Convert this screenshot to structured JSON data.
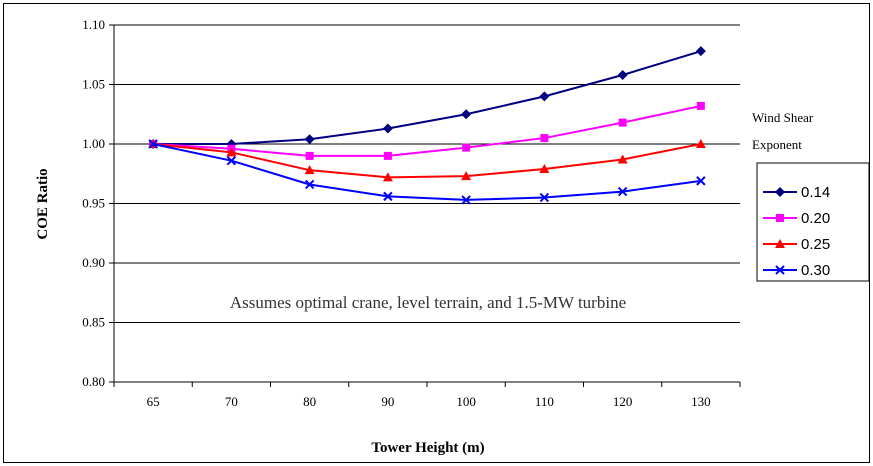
{
  "chart_data": {
    "type": "line",
    "xlabel": "Tower Height (m)",
    "ylabel": "COE Ratio",
    "categories": [
      "65",
      "70",
      "80",
      "90",
      "100",
      "110",
      "120",
      "130"
    ],
    "ylim": [
      0.8,
      1.1
    ],
    "yticks": [
      "0.80",
      "0.85",
      "0.90",
      "0.95",
      "1.00",
      "1.05",
      "1.10"
    ],
    "grid": true,
    "annotation": "Assumes optimal crane, level terrain, and 1.5-MW turbine",
    "legend": {
      "title_line1": "Wind Shear",
      "title_line2": "Exponent",
      "placement": "right"
    },
    "series": [
      {
        "name": "0.14",
        "color": "#000080",
        "marker": "diamond",
        "values": [
          1.0,
          1.0,
          1.004,
          1.013,
          1.025,
          1.04,
          1.058,
          1.078
        ]
      },
      {
        "name": "0.20",
        "color": "#ff00ff",
        "marker": "square",
        "values": [
          1.0,
          0.996,
          0.99,
          0.99,
          0.997,
          1.005,
          1.018,
          1.032
        ]
      },
      {
        "name": "0.25",
        "color": "#ff0000",
        "marker": "triangle",
        "values": [
          1.0,
          0.993,
          0.978,
          0.972,
          0.973,
          0.979,
          0.987,
          1.0
        ]
      },
      {
        "name": "0.30",
        "color": "#0000ff",
        "marker": "x",
        "values": [
          1.0,
          0.986,
          0.966,
          0.956,
          0.953,
          0.955,
          0.96,
          0.969
        ]
      }
    ]
  }
}
